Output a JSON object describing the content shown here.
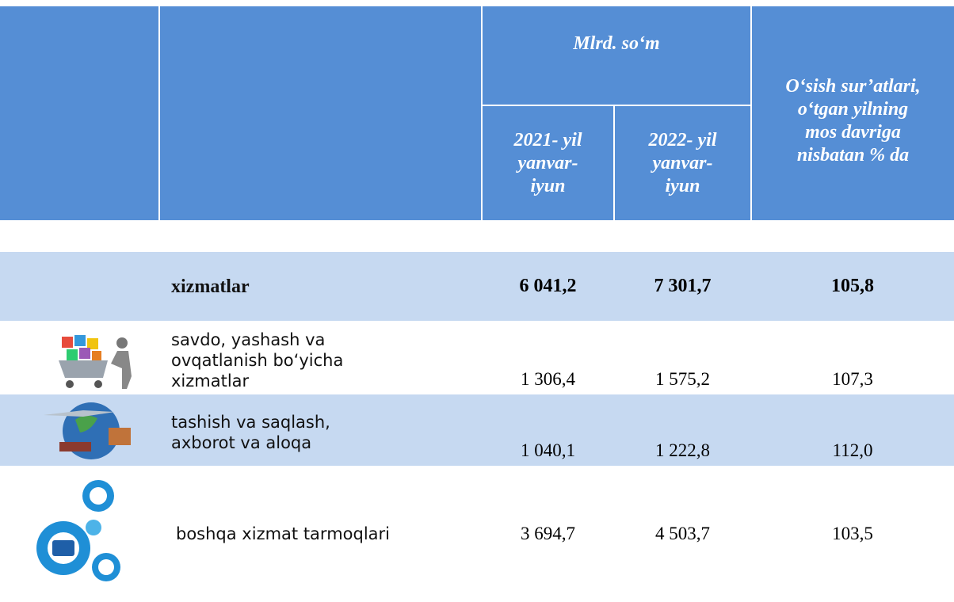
{
  "table": {
    "header": {
      "unit": "Mlrd. so‘m",
      "years": [
        "2021- yil\nyanvar-\niyun",
        "2022- yil\nyanvar-\niyun"
      ],
      "growth": "O‘sish sur’atlari,\no‘tgan yilning\nmos davriga\nnisbatan % da"
    },
    "rows": [
      {
        "label": "xizmatlar",
        "values": [
          "6 041,2",
          "7 301,7",
          "105,8"
        ]
      },
      {
        "label": "savdo, yashash va\n ovqatlanish bo‘yicha\n xizmatlar",
        "values": [
          "1 306,4",
          "1 575,2",
          "107,3"
        ]
      },
      {
        "label": "tashish va saqlash,\n   axborot va aloqa",
        "values": [
          "1 040,1",
          "1 222,8",
          "112,0"
        ]
      },
      {
        "label": "boshqa xizmat tarmoqlari",
        "values": [
          "3 694,7",
          "4 503,7",
          "103,5"
        ]
      }
    ]
  }
}
